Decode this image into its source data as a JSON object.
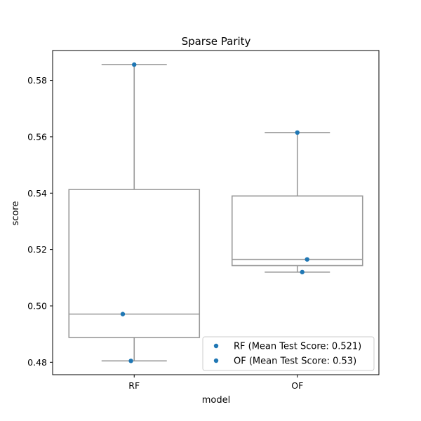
{
  "chart_data": {
    "type": "box",
    "title": "Sparse Parity",
    "xlabel": "model",
    "ylabel": "score",
    "ylim": [
      0.4756,
      0.5906
    ],
    "yticks": [
      0.48,
      0.5,
      0.52,
      0.54,
      0.56,
      0.58
    ],
    "yticklabels": [
      "0.48",
      "0.50",
      "0.52",
      "0.54",
      "0.56",
      "0.58"
    ],
    "categories": [
      "RF",
      "OF"
    ],
    "boxes": [
      {
        "name": "RF",
        "whisker_low": 0.4805,
        "q1": 0.4888,
        "median": 0.4971,
        "q3": 0.5413,
        "whisker_high": 0.5856
      },
      {
        "name": "OF",
        "whisker_low": 0.512,
        "q1": 0.5143,
        "median": 0.5165,
        "q3": 0.539,
        "whisker_high": 0.5615
      }
    ],
    "points": [
      {
        "category": "RF",
        "jitter": 0.0,
        "value": 0.5856
      },
      {
        "category": "RF",
        "jitter": -0.07,
        "value": 0.4971
      },
      {
        "category": "RF",
        "jitter": -0.02,
        "value": 0.4805
      },
      {
        "category": "OF",
        "jitter": 0.0,
        "value": 0.5615
      },
      {
        "category": "OF",
        "jitter": 0.06,
        "value": 0.5165
      },
      {
        "category": "OF",
        "jitter": 0.03,
        "value": 0.512
      }
    ],
    "legend": {
      "position": "lower right",
      "entries": [
        {
          "label": "RF (Mean Test Score: 0.521)",
          "color": "#1f77b4"
        },
        {
          "label": "OF (Mean Test Score: 0.53)",
          "color": "#1f77b4"
        }
      ]
    },
    "box_color": "#999999",
    "point_color": "#1f77b4"
  }
}
